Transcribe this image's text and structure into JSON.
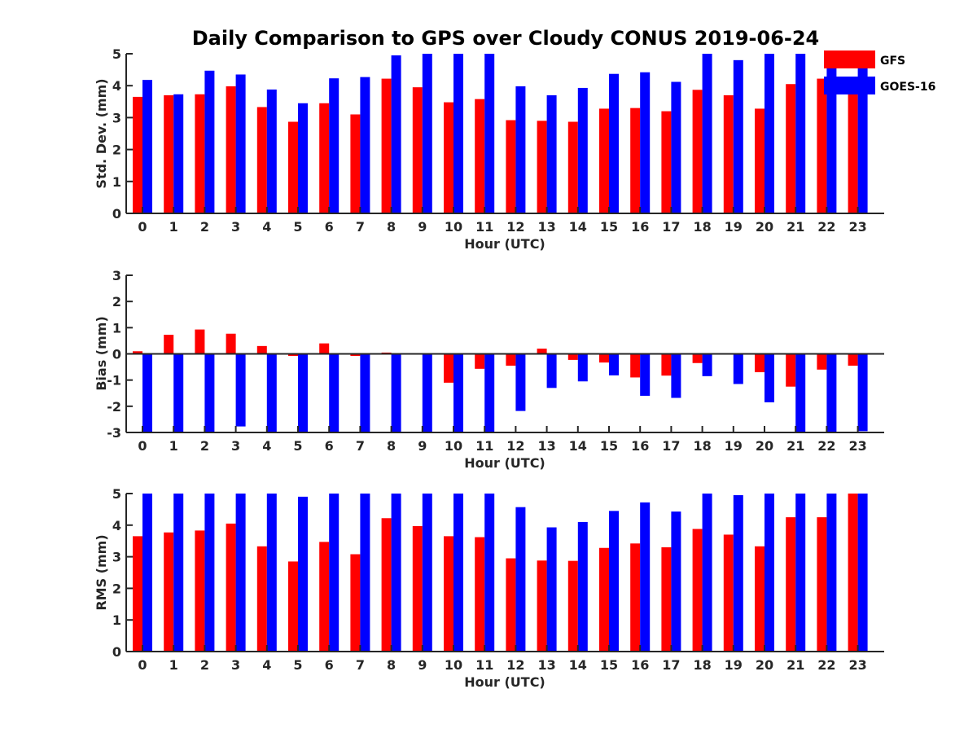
{
  "title": "Daily Comparison to GPS over Cloudy CONUS 2019-06-24",
  "colors": {
    "GFS": "#ff0000",
    "GOES-16": "#0000ff"
  },
  "legend": {
    "position": "top-right",
    "entries": [
      "GFS",
      "GOES-16"
    ]
  },
  "chart_data": [
    {
      "type": "bar",
      "xlabel": "Hour (UTC)",
      "ylabel": "Std. Dev. (mm)",
      "ylim": [
        0,
        5
      ],
      "yticks": [
        0,
        1,
        2,
        3,
        4,
        5
      ],
      "categories": [
        "0",
        "1",
        "2",
        "3",
        "4",
        "5",
        "6",
        "7",
        "8",
        "9",
        "10",
        "11",
        "12",
        "13",
        "14",
        "15",
        "16",
        "17",
        "18",
        "19",
        "20",
        "21",
        "22",
        "23"
      ],
      "series": [
        {
          "name": "GFS",
          "values": [
            3.65,
            3.7,
            3.73,
            3.98,
            3.33,
            2.87,
            3.45,
            3.1,
            4.22,
            3.95,
            3.48,
            3.58,
            2.92,
            2.9,
            2.87,
            3.28,
            3.3,
            3.2,
            3.87,
            3.7,
            3.28,
            4.05,
            4.22,
            3.95
          ]
        },
        {
          "name": "GOES-16",
          "values": [
            4.18,
            3.73,
            4.47,
            4.35,
            3.88,
            3.45,
            4.23,
            4.27,
            4.95,
            5.0,
            5.0,
            5.0,
            3.98,
            3.7,
            3.93,
            4.37,
            4.42,
            4.12,
            5.0,
            4.8,
            5.0,
            5.0,
            5.0,
            4.6
          ]
        }
      ]
    },
    {
      "type": "bar",
      "xlabel": "Hour (UTC)",
      "ylabel": "Bias (mm)",
      "ylim": [
        -3,
        3
      ],
      "yticks": [
        -3,
        -2,
        -1,
        0,
        1,
        2,
        3
      ],
      "categories": [
        "0",
        "1",
        "2",
        "3",
        "4",
        "5",
        "6",
        "7",
        "8",
        "9",
        "10",
        "11",
        "12",
        "13",
        "14",
        "15",
        "16",
        "17",
        "18",
        "19",
        "20",
        "21",
        "22",
        "23"
      ],
      "series": [
        {
          "name": "GFS",
          "values": [
            0.1,
            0.73,
            0.93,
            0.77,
            0.3,
            -0.08,
            0.4,
            -0.08,
            0.05,
            0.0,
            -1.1,
            -0.57,
            -0.45,
            0.2,
            -0.23,
            -0.33,
            -0.9,
            -0.83,
            -0.35,
            -0.03,
            -0.7,
            -1.25,
            -0.6,
            -0.45
          ]
        },
        {
          "name": "GOES-16",
          "values": [
            -3.0,
            -3.0,
            -3.0,
            -2.77,
            -3.0,
            -3.0,
            -3.0,
            -3.0,
            -3.0,
            -3.0,
            -3.0,
            -3.0,
            -2.18,
            -1.3,
            -1.05,
            -0.82,
            -1.6,
            -1.68,
            -0.85,
            -1.15,
            -1.85,
            -3.0,
            -3.0,
            -2.95
          ]
        }
      ]
    },
    {
      "type": "bar",
      "xlabel": "Hour (UTC)",
      "ylabel": "RMS (mm)",
      "ylim": [
        0,
        5
      ],
      "yticks": [
        0,
        1,
        2,
        3,
        4,
        5
      ],
      "categories": [
        "0",
        "1",
        "2",
        "3",
        "4",
        "5",
        "6",
        "7",
        "8",
        "9",
        "10",
        "11",
        "12",
        "13",
        "14",
        "15",
        "16",
        "17",
        "18",
        "19",
        "20",
        "21",
        "22",
        "23"
      ],
      "series": [
        {
          "name": "GFS",
          "values": [
            3.65,
            3.77,
            3.83,
            4.05,
            3.33,
            2.85,
            3.47,
            3.08,
            4.22,
            3.97,
            3.65,
            3.62,
            2.95,
            2.88,
            2.87,
            3.28,
            3.42,
            3.3,
            3.88,
            3.7,
            3.33,
            4.25,
            4.25,
            5.0
          ]
        },
        {
          "name": "GOES-16",
          "values": [
            5.0,
            5.0,
            5.0,
            5.0,
            5.0,
            4.9,
            5.0,
            5.0,
            5.0,
            5.0,
            5.0,
            5.0,
            4.57,
            3.93,
            4.1,
            4.45,
            4.72,
            4.43,
            5.0,
            4.95,
            5.0,
            5.0,
            5.0,
            5.0
          ]
        }
      ]
    }
  ]
}
